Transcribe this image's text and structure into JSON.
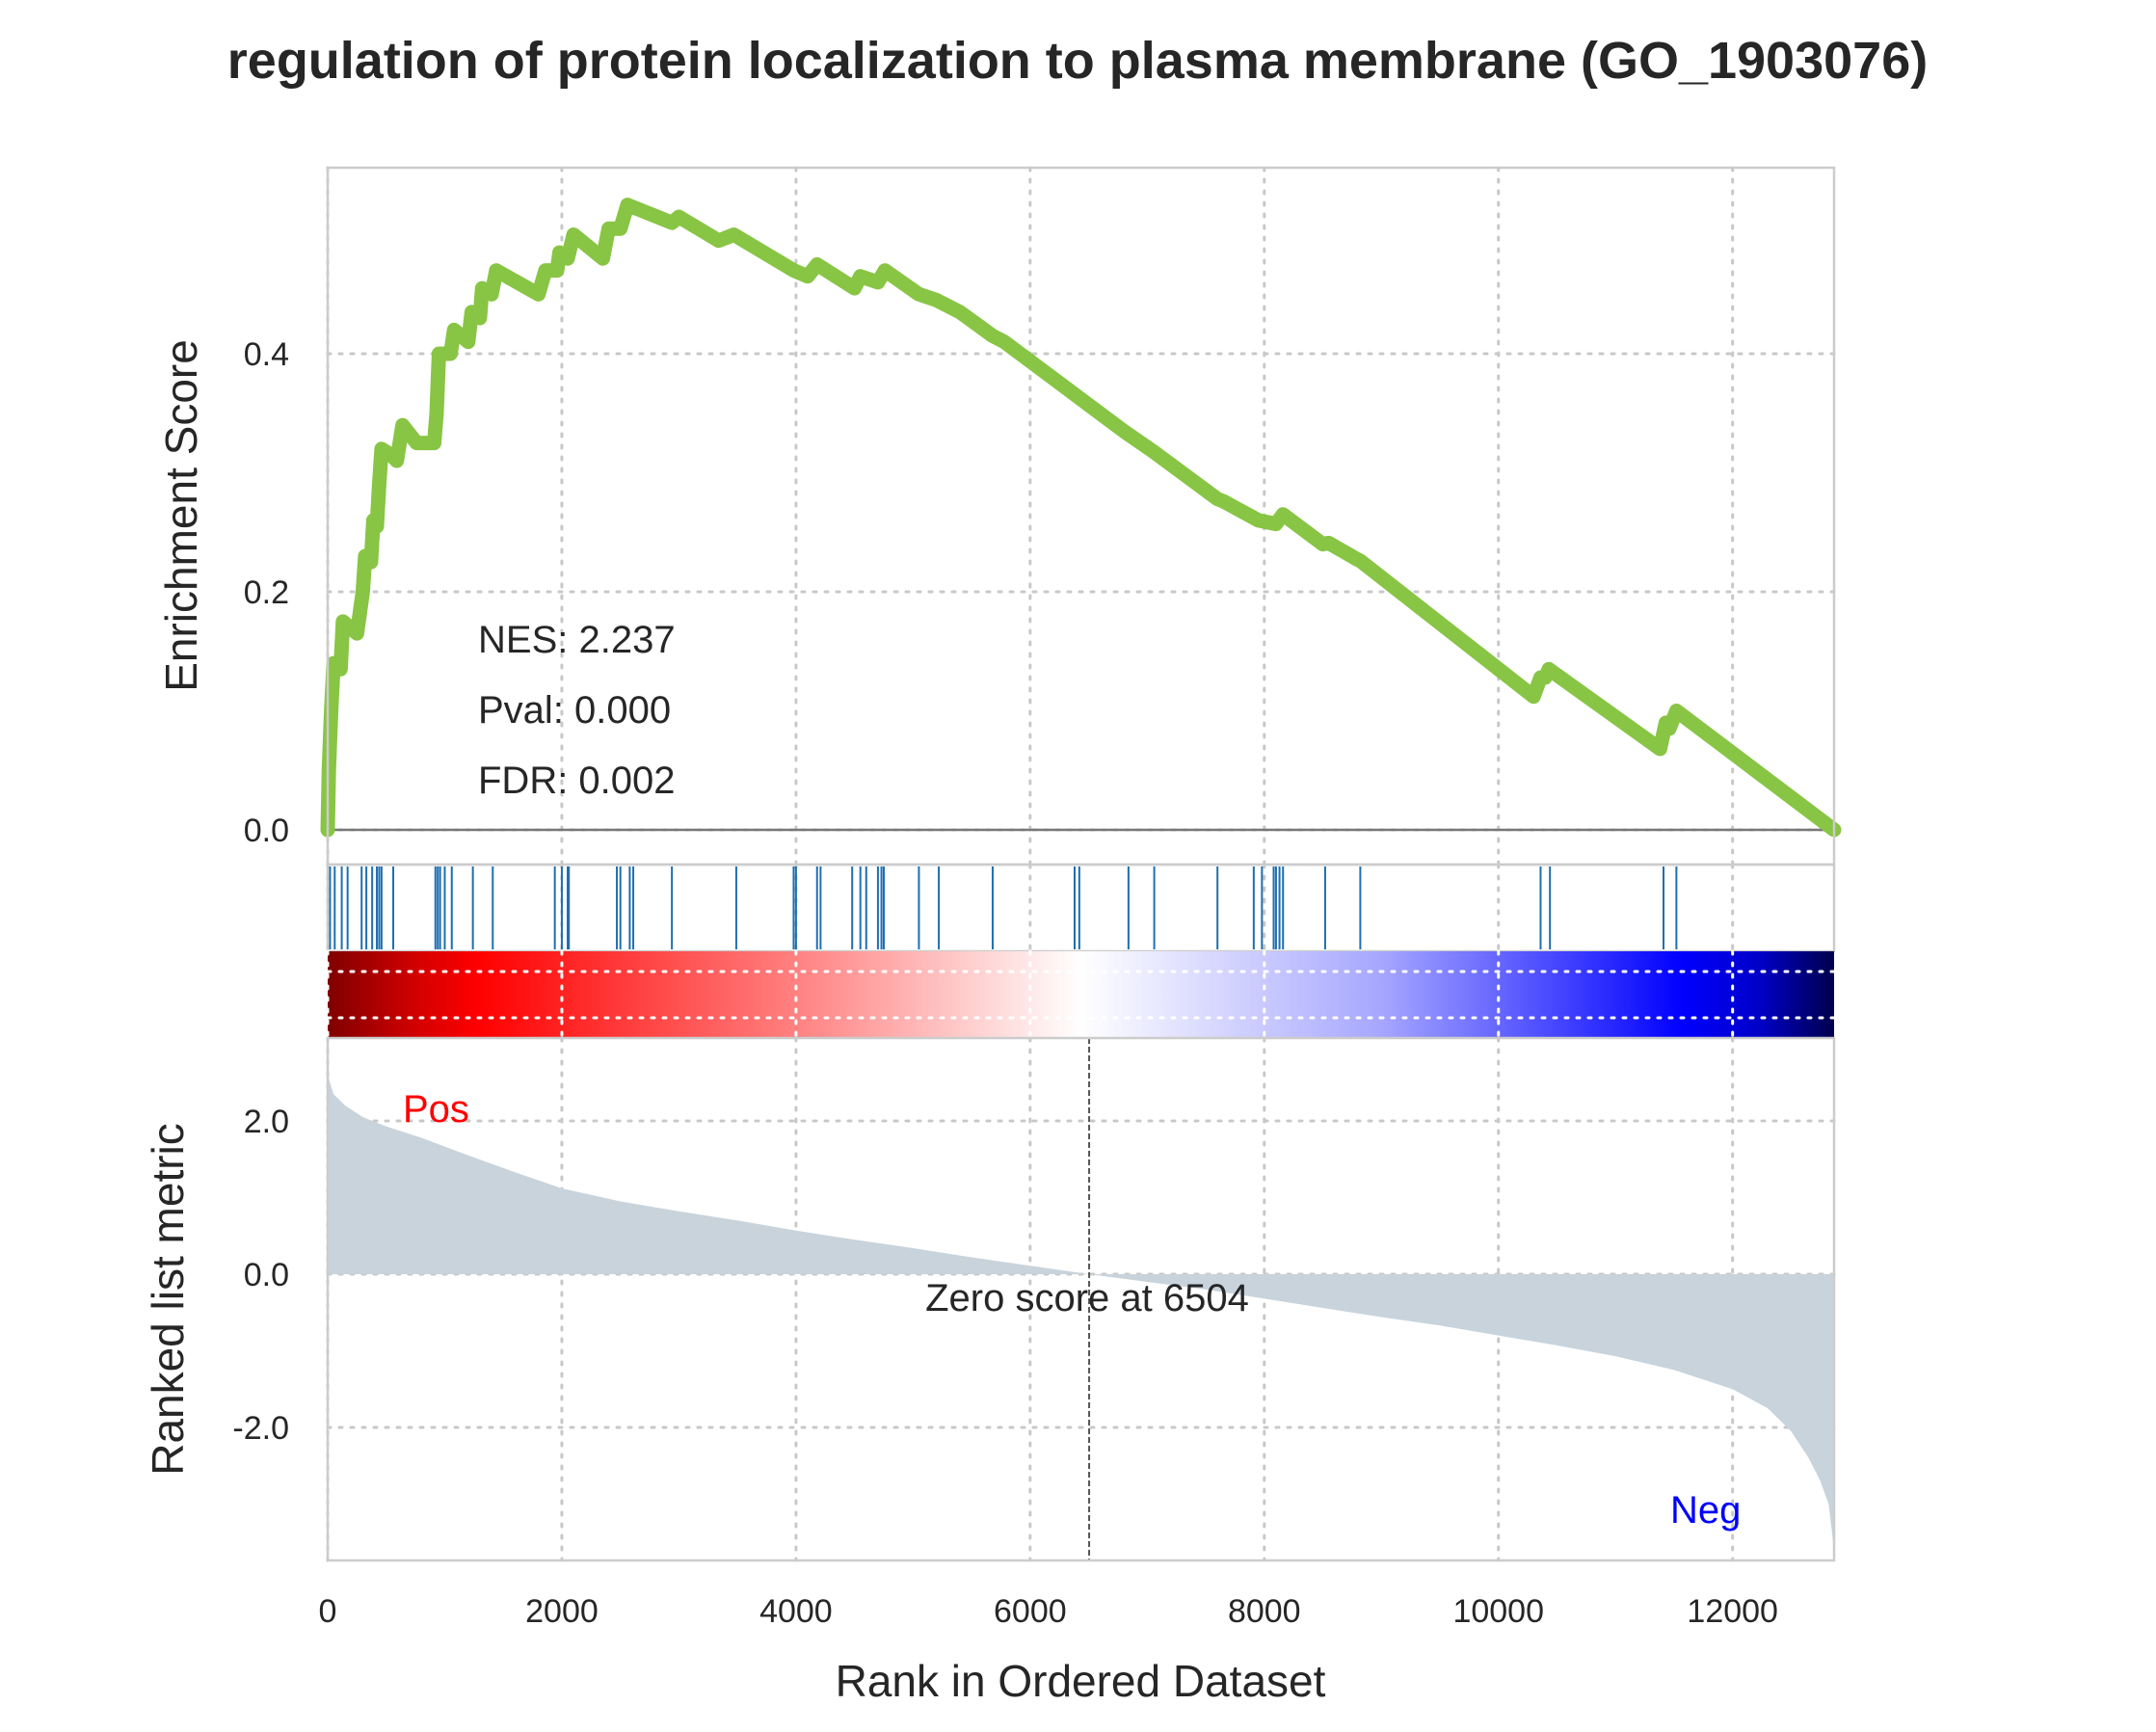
{
  "title": "regulation of protein localization to plasma membrane (GO_1903076)",
  "colors": {
    "es_line": "#88c544",
    "hit_line": "#1f6fb0",
    "metric_fill": "#c8d3dc",
    "pos_label": "#ff0000",
    "neg_label": "#0000ff",
    "zero_line": "#555555"
  },
  "stats": {
    "nes": "NES: 2.237",
    "pval": "Pval: 0.000",
    "fdr": "FDR: 0.002"
  },
  "annotations": {
    "pos": "Pos",
    "neg": "Neg",
    "zero_score": "Zero score at 6504"
  },
  "chart_data": [
    {
      "type": "line",
      "panel": "enrichment-score",
      "ylabel": "Enrichment Score",
      "xlim": [
        0,
        12867
      ],
      "ylim": [
        0,
        0.56
      ],
      "yticks": [
        0.0,
        0.2,
        0.4
      ],
      "ytick_labels": [
        "0.0",
        "0.2",
        "0.4"
      ],
      "grid": true,
      "points": [
        [
          0,
          0
        ],
        [
          10,
          0.05
        ],
        [
          30,
          0.1
        ],
        [
          50,
          0.14
        ],
        [
          110,
          0.135
        ],
        [
          130,
          0.175
        ],
        [
          250,
          0.165
        ],
        [
          300,
          0.2
        ],
        [
          320,
          0.23
        ],
        [
          370,
          0.225
        ],
        [
          390,
          0.26
        ],
        [
          420,
          0.255
        ],
        [
          440,
          0.29
        ],
        [
          460,
          0.32
        ],
        [
          540,
          0.315
        ],
        [
          590,
          0.31
        ],
        [
          640,
          0.34
        ],
        [
          760,
          0.325
        ],
        [
          910,
          0.325
        ],
        [
          930,
          0.35
        ],
        [
          950,
          0.4
        ],
        [
          1050,
          0.4
        ],
        [
          1080,
          0.42
        ],
        [
          1200,
          0.41
        ],
        [
          1230,
          0.435
        ],
        [
          1300,
          0.43
        ],
        [
          1320,
          0.455
        ],
        [
          1400,
          0.45
        ],
        [
          1440,
          0.47
        ],
        [
          1800,
          0.45
        ],
        [
          1860,
          0.47
        ],
        [
          1960,
          0.47
        ],
        [
          1980,
          0.485
        ],
        [
          2050,
          0.48
        ],
        [
          2100,
          0.5
        ],
        [
          2350,
          0.48
        ],
        [
          2400,
          0.505
        ],
        [
          2500,
          0.505
        ],
        [
          2560,
          0.525
        ],
        [
          2940,
          0.51
        ],
        [
          3000,
          0.515
        ],
        [
          3340,
          0.495
        ],
        [
          3470,
          0.5
        ],
        [
          3980,
          0.47
        ],
        [
          4100,
          0.465
        ],
        [
          4180,
          0.475
        ],
        [
          4500,
          0.455
        ],
        [
          4550,
          0.465
        ],
        [
          4700,
          0.46
        ],
        [
          4760,
          0.47
        ],
        [
          5050,
          0.45
        ],
        [
          5200,
          0.445
        ],
        [
          5400,
          0.435
        ],
        [
          5680,
          0.415
        ],
        [
          5780,
          0.41
        ],
        [
          6800,
          0.335
        ],
        [
          7050,
          0.318
        ],
        [
          7600,
          0.278
        ],
        [
          7650,
          0.276
        ],
        [
          7950,
          0.26
        ],
        [
          8100,
          0.257
        ],
        [
          8160,
          0.265
        ],
        [
          8500,
          0.24
        ],
        [
          8550,
          0.241
        ],
        [
          8780,
          0.228
        ],
        [
          8820,
          0.226
        ],
        [
          10300,
          0.112
        ],
        [
          10360,
          0.128
        ],
        [
          10400,
          0.128
        ],
        [
          10430,
          0.135
        ],
        [
          11380,
          0.068
        ],
        [
          11430,
          0.09
        ],
        [
          11460,
          0.085
        ],
        [
          11520,
          0.1
        ],
        [
          12867,
          0
        ]
      ],
      "stats": [
        "NES: 2.237",
        "Pval: 0.000",
        "FDR: 0.002"
      ]
    },
    {
      "type": "hits",
      "panel": "gene-hit-ticks",
      "positions": [
        20,
        60,
        120,
        170,
        290,
        330,
        380,
        420,
        440,
        460,
        560,
        920,
        940,
        960,
        1000,
        1060,
        1240,
        1410,
        1940,
        2000,
        2050,
        2060,
        2470,
        2500,
        2580,
        2610,
        2940,
        3490,
        3980,
        4000,
        4180,
        4210,
        4480,
        4550,
        4600,
        4700,
        4730,
        4750,
        5050,
        5220,
        5680,
        6380,
        6420,
        6840,
        7060,
        7600,
        7910,
        7980,
        8080,
        8100,
        8130,
        8160,
        8520,
        8820,
        10360,
        10440,
        11410,
        11520
      ]
    },
    {
      "type": "heatmap",
      "panel": "rank-colorbar",
      "colormap": "seismic",
      "direction": "red-to-blue"
    },
    {
      "type": "area",
      "panel": "ranked-list-metric",
      "ylabel": "Ranked list metric",
      "xlabel": "Rank in Ordered Dataset",
      "xlim": [
        0,
        12867
      ],
      "ylim": [
        -3.7,
        3.1
      ],
      "xticks": [
        0,
        2000,
        4000,
        6000,
        8000,
        10000,
        12000
      ],
      "xtick_labels": [
        "0",
        "2000",
        "4000",
        "6000",
        "8000",
        "10000",
        "12000"
      ],
      "yticks": [
        2.0,
        0.0,
        -2.0
      ],
      "ytick_labels": [
        "2.0",
        "0.0",
        "-2.0"
      ],
      "grid": true,
      "zero_cross": 6504,
      "points": [
        [
          0,
          2.6
        ],
        [
          50,
          2.35
        ],
        [
          150,
          2.2
        ],
        [
          300,
          2.05
        ],
        [
          500,
          1.93
        ],
        [
          800,
          1.78
        ],
        [
          1200,
          1.55
        ],
        [
          1600,
          1.33
        ],
        [
          2000,
          1.12
        ],
        [
          2500,
          0.95
        ],
        [
          3000,
          0.82
        ],
        [
          3500,
          0.7
        ],
        [
          4000,
          0.57
        ],
        [
          4500,
          0.45
        ],
        [
          5000,
          0.34
        ],
        [
          5500,
          0.22
        ],
        [
          6000,
          0.11
        ],
        [
          6504,
          0
        ],
        [
          7000,
          -0.1
        ],
        [
          7500,
          -0.2
        ],
        [
          8000,
          -0.32
        ],
        [
          8500,
          -0.44
        ],
        [
          9000,
          -0.56
        ],
        [
          9500,
          -0.67
        ],
        [
          10000,
          -0.8
        ],
        [
          10500,
          -0.93
        ],
        [
          11000,
          -1.07
        ],
        [
          11500,
          -1.25
        ],
        [
          12000,
          -1.5
        ],
        [
          12300,
          -1.75
        ],
        [
          12500,
          -2.05
        ],
        [
          12650,
          -2.4
        ],
        [
          12750,
          -2.7
        ],
        [
          12820,
          -3.0
        ],
        [
          12860,
          -3.5
        ],
        [
          12867,
          -3.6
        ]
      ],
      "annotations": [
        "Pos",
        "Neg",
        "Zero score at 6504"
      ]
    }
  ]
}
